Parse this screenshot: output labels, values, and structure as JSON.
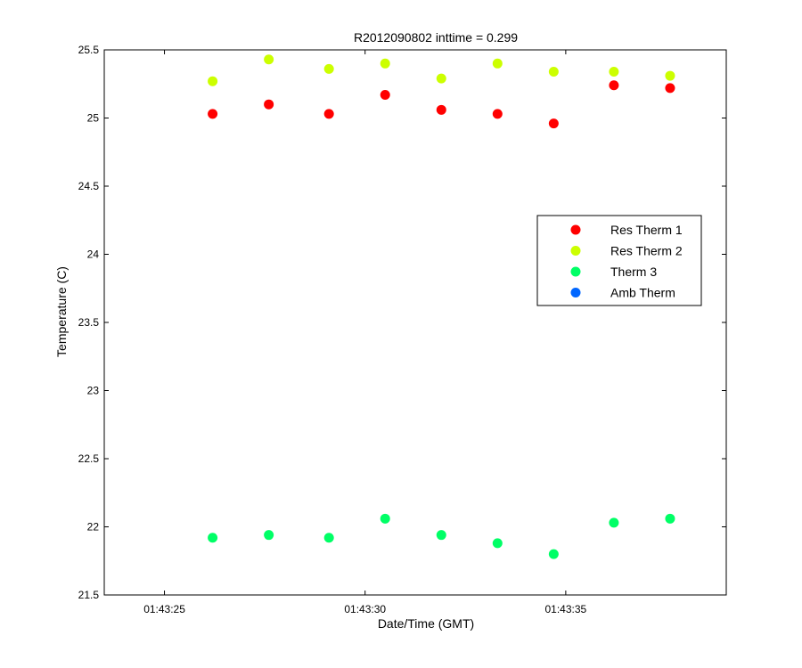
{
  "chart_data": {
    "type": "scatter",
    "title": "R2012090802 inttime = 0.299",
    "xlabel": "Date/Time (GMT)",
    "ylabel": "Temperature (C)",
    "xlim": [
      "01:43:23.5",
      "01:43:39"
    ],
    "ylim": [
      21.5,
      25.5
    ],
    "grid": false,
    "legend_position": "right",
    "x_ticks": [
      "01:43:25",
      "01:43:30",
      "01:43:35"
    ],
    "y_ticks": [
      25.5,
      25,
      24.5,
      24,
      23.5,
      23,
      22.5,
      22,
      21.5
    ],
    "x": [
      "01:43:26.2",
      "01:43:27.6",
      "01:43:29.1",
      "01:43:30.5",
      "01:43:31.9",
      "01:43:33.3",
      "01:43:34.7",
      "01:43:36.2",
      "01:43:37.6"
    ],
    "series": [
      {
        "name": "Res Therm 1",
        "color": "#ff0000",
        "values": [
          25.03,
          25.1,
          25.03,
          25.17,
          25.06,
          25.03,
          24.96,
          25.24,
          25.22
        ]
      },
      {
        "name": "Res Therm 2",
        "color": "#ccff00",
        "values": [
          25.27,
          25.43,
          25.36,
          25.4,
          25.29,
          25.4,
          25.34,
          25.34,
          25.31
        ]
      },
      {
        "name": "Therm 3",
        "color": "#00ff66",
        "values": [
          21.92,
          21.94,
          21.92,
          22.06,
          21.94,
          21.88,
          21.8,
          22.03,
          22.06
        ]
      },
      {
        "name": "Amb Therm",
        "color": "#0066ff",
        "values": []
      }
    ]
  }
}
